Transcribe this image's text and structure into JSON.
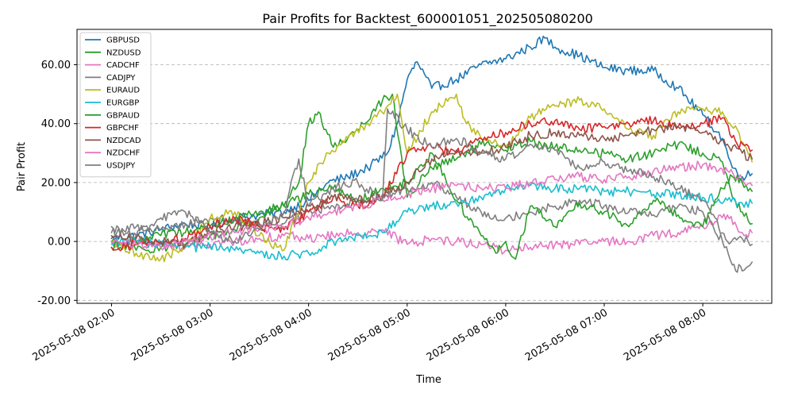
{
  "chart_data": {
    "type": "line",
    "title": "Pair Profits for Backtest_600001051_202505080200",
    "xlabel": "Time",
    "ylabel": "Pair Profit",
    "x_unit": "hours since 2025-05-08 02:00",
    "xlim": [
      -0.35,
      6.7
    ],
    "ylim": [
      -21,
      72
    ],
    "grid": "horizontal dashed",
    "legend_position": "top-left",
    "x_ticks": [
      {
        "value": 0,
        "label": "2025-05-08 02:00"
      },
      {
        "value": 1,
        "label": "2025-05-08 03:00"
      },
      {
        "value": 2,
        "label": "2025-05-08 04:00"
      },
      {
        "value": 3,
        "label": "2025-05-08 05:00"
      },
      {
        "value": 4,
        "label": "2025-05-08 06:00"
      },
      {
        "value": 5,
        "label": "2025-05-08 07:00"
      },
      {
        "value": 6,
        "label": "2025-05-08 08:00"
      }
    ],
    "y_ticks": [
      {
        "value": -20,
        "label": "-20.00"
      },
      {
        "value": 0,
        "label": "0.00"
      },
      {
        "value": 20,
        "label": "20.00"
      },
      {
        "value": 40,
        "label": "40.00"
      },
      {
        "value": 60,
        "label": "60.00"
      }
    ],
    "series": [
      {
        "name": "GBPUSD",
        "color": "#1f77b4",
        "x": [
          0,
          0.25,
          0.5,
          0.75,
          1,
          1.25,
          1.5,
          1.75,
          2,
          2.2,
          2.4,
          2.6,
          2.8,
          2.9,
          3,
          3.1,
          3.25,
          3.5,
          3.75,
          4,
          4.25,
          4.4,
          4.5,
          4.75,
          5,
          5.25,
          5.5,
          5.75,
          6,
          6.2,
          6.3,
          6.4,
          6.5
        ],
        "y": [
          1,
          2,
          4,
          6,
          5,
          8,
          9,
          10,
          14,
          20,
          22,
          25,
          30,
          40,
          55,
          61,
          52,
          55,
          60,
          62,
          66,
          69,
          66,
          63,
          59,
          58,
          58,
          52,
          43,
          35,
          25,
          22,
          23
        ]
      },
      {
        "name": "NZDUSD",
        "color": "#2ca02c",
        "x": [
          0,
          0.25,
          0.5,
          0.75,
          1,
          1.25,
          1.5,
          1.75,
          1.9,
          2,
          2.1,
          2.25,
          2.5,
          2.75,
          2.85,
          3,
          3.25,
          3.5,
          3.75,
          4,
          4.25,
          4.5,
          4.75,
          5,
          5.25,
          5.5,
          5.75,
          6,
          6.2,
          6.3,
          6.4,
          6.5
        ],
        "y": [
          0,
          -3,
          -2,
          -1,
          2,
          4,
          8,
          12,
          20,
          40,
          44,
          32,
          38,
          48,
          50,
          15,
          25,
          28,
          33,
          31,
          34,
          32,
          31,
          30,
          28,
          30,
          33,
          30,
          27,
          15,
          10,
          6
        ]
      },
      {
        "name": "CADCHF",
        "color": "#e377c2",
        "x": [
          0,
          0.25,
          0.5,
          0.75,
          1,
          1.25,
          1.5,
          1.75,
          2,
          2.25,
          2.5,
          2.75,
          3,
          3.25,
          3.5,
          3.75,
          4,
          4.25,
          4.5,
          4.75,
          5,
          5.25,
          5.5,
          5.75,
          6,
          6.25,
          6.4,
          6.5
        ],
        "y": [
          -1,
          0,
          -1,
          -2,
          -1,
          0,
          1,
          2,
          1,
          2,
          3,
          4,
          -1,
          1,
          0,
          -1,
          -3,
          -2,
          -1,
          -1,
          0,
          0,
          2,
          3,
          5,
          9,
          3,
          3
        ]
      },
      {
        "name": "CADJPY",
        "color": "#7f7f7f",
        "x": [
          0,
          0.25,
          0.5,
          0.75,
          1,
          1.25,
          1.5,
          1.75,
          2,
          2.25,
          2.5,
          2.75,
          3,
          3.25,
          3.5,
          3.75,
          4,
          4.25,
          4.5,
          4.75,
          5,
          5.25,
          5.5,
          5.75,
          6,
          6.2,
          6.3,
          6.4,
          6.5
        ],
        "y": [
          3,
          5,
          4,
          6,
          8,
          7,
          5,
          6,
          10,
          12,
          14,
          15,
          18,
          20,
          15,
          10,
          8,
          10,
          12,
          14,
          12,
          10,
          9,
          12,
          10,
          0,
          -8,
          -10,
          -7
        ]
      },
      {
        "name": "EURAUD",
        "color": "#bcbd22",
        "x": [
          0,
          0.25,
          0.5,
          0.75,
          1,
          1.25,
          1.5,
          1.75,
          2,
          2.2,
          2.4,
          2.6,
          2.8,
          2.9,
          3,
          3.25,
          3.5,
          3.6,
          3.75,
          4,
          4.25,
          4.5,
          4.75,
          5,
          5.25,
          5.5,
          5.75,
          6,
          6.2,
          6.35,
          6.5
        ],
        "y": [
          -1,
          -4,
          -6,
          -2,
          8,
          10,
          2,
          -3,
          20,
          30,
          35,
          40,
          46,
          50,
          30,
          44,
          50,
          40,
          35,
          32,
          42,
          46,
          48,
          45,
          38,
          36,
          44,
          45,
          44,
          38,
          27
        ]
      },
      {
        "name": "EURGBP",
        "color": "#17becf",
        "x": [
          0,
          0.25,
          0.5,
          0.75,
          1,
          1.25,
          1.5,
          1.75,
          2,
          2.25,
          2.5,
          2.75,
          3,
          3.25,
          3.5,
          3.75,
          4,
          4.25,
          4.5,
          4.75,
          5,
          5.25,
          5.5,
          5.75,
          6,
          6.25,
          6.4,
          6.5
        ],
        "y": [
          0,
          0,
          -1,
          -2,
          -2,
          -3,
          -4,
          -5,
          -4,
          0,
          2,
          3,
          10,
          12,
          13,
          15,
          18,
          19,
          18,
          18,
          17,
          17,
          16,
          16,
          15,
          14,
          13,
          13
        ]
      },
      {
        "name": "GBPAUD",
        "color": "#2ca02c",
        "x": [
          0,
          0.25,
          0.5,
          0.75,
          1,
          1.25,
          1.5,
          1.75,
          2,
          2.25,
          2.5,
          2.75,
          3,
          3.25,
          3.5,
          3.75,
          3.9,
          4,
          4.1,
          4.25,
          4.5,
          4.75,
          5,
          5.25,
          5.5,
          5.75,
          6,
          6.2,
          6.3,
          6.4,
          6.5
        ],
        "y": [
          -2,
          0,
          2,
          3,
          5,
          8,
          10,
          12,
          16,
          18,
          14,
          18,
          20,
          30,
          14,
          2,
          -4,
          0,
          -6,
          12,
          5,
          13,
          10,
          5,
          14,
          9,
          5,
          18,
          22,
          20,
          17
        ]
      },
      {
        "name": "GBPCHF",
        "color": "#d62728",
        "x": [
          0,
          0.25,
          0.5,
          0.75,
          1,
          1.25,
          1.5,
          1.75,
          2,
          2.25,
          2.5,
          2.75,
          3,
          3.25,
          3.5,
          3.75,
          4,
          4.25,
          4.5,
          4.75,
          5,
          5.25,
          5.5,
          5.75,
          6,
          6.2,
          6.35,
          6.5
        ],
        "y": [
          -2,
          -1,
          0,
          1,
          5,
          8,
          5,
          4,
          10,
          15,
          12,
          15,
          30,
          32,
          30,
          35,
          37,
          40,
          41,
          38,
          39,
          40,
          41,
          39,
          40,
          42,
          33,
          31
        ]
      },
      {
        "name": "NZDCAD",
        "color": "#8c564b",
        "x": [
          0,
          0.25,
          0.5,
          0.75,
          1,
          1.25,
          1.5,
          1.75,
          2,
          2.25,
          2.5,
          2.75,
          3,
          3.25,
          3.5,
          3.75,
          4,
          4.25,
          4.5,
          4.75,
          5,
          5.25,
          5.5,
          5.75,
          6,
          6.25,
          6.4,
          6.5
        ],
        "y": [
          2,
          1,
          0,
          -1,
          3,
          5,
          6,
          8,
          12,
          15,
          14,
          16,
          20,
          28,
          31,
          30,
          32,
          36,
          37,
          36,
          35,
          36,
          38,
          39,
          37,
          33,
          30,
          28
        ]
      },
      {
        "name": "NZDCHF",
        "color": "#e377c2",
        "x": [
          0,
          0.25,
          0.5,
          0.75,
          1,
          1.25,
          1.5,
          1.75,
          2,
          2.25,
          2.5,
          2.75,
          3,
          3.25,
          3.5,
          3.75,
          4,
          4.25,
          4.5,
          4.75,
          5,
          5.25,
          5.5,
          5.75,
          6,
          6.25,
          6.4,
          6.5
        ],
        "y": [
          0,
          -1,
          -2,
          0,
          2,
          3,
          4,
          5,
          8,
          10,
          12,
          14,
          16,
          18,
          19,
          18,
          18,
          20,
          21,
          22,
          21,
          22,
          24,
          25,
          26,
          24,
          21,
          19
        ]
      },
      {
        "name": "USDJPY",
        "color": "#7f7f7f",
        "x": [
          0,
          0.25,
          0.5,
          0.75,
          1,
          1.25,
          1.5,
          1.75,
          1.9,
          2,
          2.25,
          2.5,
          2.75,
          2.8,
          3,
          3.25,
          3.5,
          3.75,
          4,
          4.25,
          4.5,
          4.75,
          5,
          5.25,
          5.5,
          5.75,
          6,
          6.25,
          6.4,
          6.5
        ],
        "y": [
          5,
          2,
          8,
          10,
          3,
          0,
          4,
          10,
          28,
          12,
          18,
          20,
          14,
          45,
          38,
          32,
          35,
          30,
          28,
          33,
          31,
          25,
          27,
          24,
          22,
          18,
          14,
          0,
          1,
          -1
        ]
      }
    ]
  }
}
